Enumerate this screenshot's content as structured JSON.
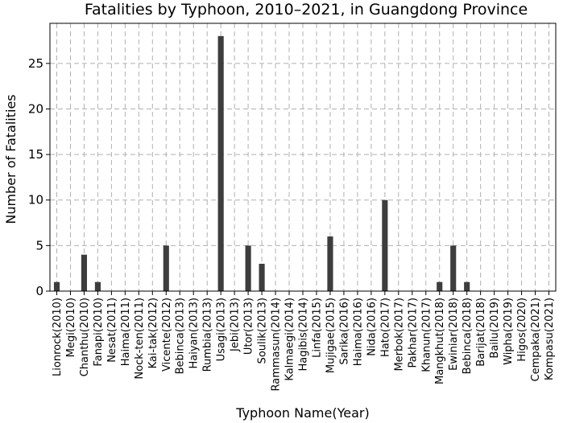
{
  "chart_data": {
    "type": "bar",
    "title": "Fatalities by Typhoon, 2010–2021, in Guangdong Province",
    "xlabel": "Typhoon Name(Year)",
    "ylabel": "Number of Fatalities",
    "ylim": [
      0,
      29.4
    ],
    "yticks": [
      0,
      5,
      10,
      15,
      20,
      25
    ],
    "grid": true,
    "colors": {
      "bar": "#3d3d3d",
      "grid": "#b0b0b0",
      "axis": "#000000"
    },
    "categories": [
      "Lionrock(2010)",
      "Megi(2010)",
      "Chanthu(2010)",
      "Fanapi(2010)",
      "Nesat(2011)",
      "Haima(2011)",
      "Nock-ten(2011)",
      "Kai-tak(2012)",
      "Vicente(2012)",
      "Bebinca(2013)",
      "Haiyan(2013)",
      "Rumbia(2013)",
      "Usagi(2013)",
      "Jebi(2013)",
      "Utor(2013)",
      "Soulik(2013)",
      "Rammasun(2014)",
      "Kalmaegi(2014)",
      "Hagibis(2014)",
      "Linfa(2015)",
      "Mujigae(2015)",
      "Sarika(2016)",
      "Haima(2016)",
      "Nida(2016)",
      "Hato(2017)",
      "Merbok(2017)",
      "Pakhar(2017)",
      "Khanun(2017)",
      "Mangkhut(2018)",
      "Ewiniar(2018)",
      "Bebinca(2018)",
      "Barijat(2018)",
      "Bailu(2019)",
      "Wipha(2019)",
      "Higos(2020)",
      "Cempaka(2021)",
      "Kompasu(2021)"
    ],
    "values": [
      1,
      0,
      4,
      1,
      0,
      0,
      0,
      0,
      5,
      0,
      0,
      0,
      28,
      0,
      5,
      3,
      0,
      0,
      0,
      0,
      6,
      0,
      0,
      0,
      10,
      0,
      0,
      0,
      1,
      5,
      1,
      0,
      0,
      0,
      0,
      0,
      0
    ]
  }
}
